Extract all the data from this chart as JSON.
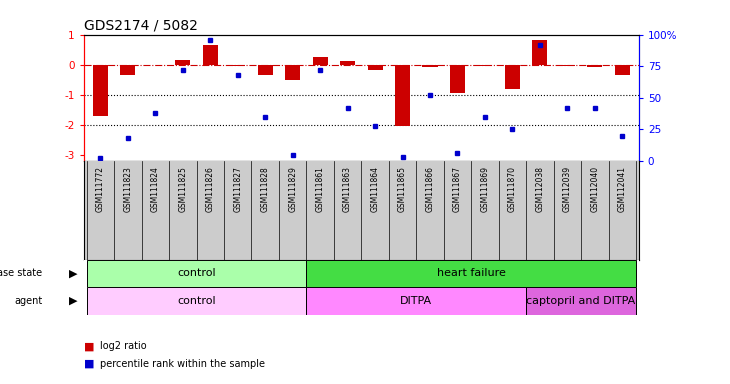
{
  "title": "GDS2174 / 5082",
  "samples": [
    "GSM111772",
    "GSM111823",
    "GSM111824",
    "GSM111825",
    "GSM111826",
    "GSM111827",
    "GSM111828",
    "GSM111829",
    "GSM111861",
    "GSM111863",
    "GSM111864",
    "GSM111865",
    "GSM111866",
    "GSM111867",
    "GSM111869",
    "GSM111870",
    "GSM112038",
    "GSM112039",
    "GSM112040",
    "GSM112041"
  ],
  "log2_ratio": [
    -1.7,
    -0.35,
    -0.02,
    0.15,
    0.65,
    -0.05,
    -0.35,
    -0.5,
    0.27,
    0.12,
    -0.18,
    -2.05,
    -0.08,
    -0.95,
    -0.05,
    -0.8,
    0.82,
    -0.05,
    -0.08,
    -0.35
  ],
  "percentile_rank": [
    2,
    18,
    38,
    72,
    96,
    68,
    35,
    5,
    72,
    42,
    28,
    3,
    52,
    6,
    35,
    25,
    92,
    42,
    42,
    20
  ],
  "disease_state_groups": [
    {
      "label": "control",
      "start": 0,
      "end": 8,
      "color": "#aaffaa"
    },
    {
      "label": "heart failure",
      "start": 8,
      "end": 20,
      "color": "#44dd44"
    }
  ],
  "agent_groups": [
    {
      "label": "control",
      "start": 0,
      "end": 8,
      "color": "#ffccff"
    },
    {
      "label": "DITPA",
      "start": 8,
      "end": 16,
      "color": "#ff88ff"
    },
    {
      "label": "captopril and DITPA",
      "start": 16,
      "end": 20,
      "color": "#dd66dd"
    }
  ],
  "bar_color": "#CC0000",
  "dot_color": "#0000CC",
  "dashed_line_color": "#CC0000",
  "ylim_left": [
    -3.2,
    1.0
  ],
  "ylim_right": [
    0,
    100
  ],
  "right_ticks": [
    0,
    25,
    50,
    75,
    100
  ],
  "right_tick_labels": [
    "0",
    "25",
    "50",
    "75",
    "100%"
  ],
  "left_ticks": [
    -3,
    -2,
    -1,
    0,
    1
  ],
  "label_row_bg": "#cccccc",
  "background_color": "#ffffff"
}
